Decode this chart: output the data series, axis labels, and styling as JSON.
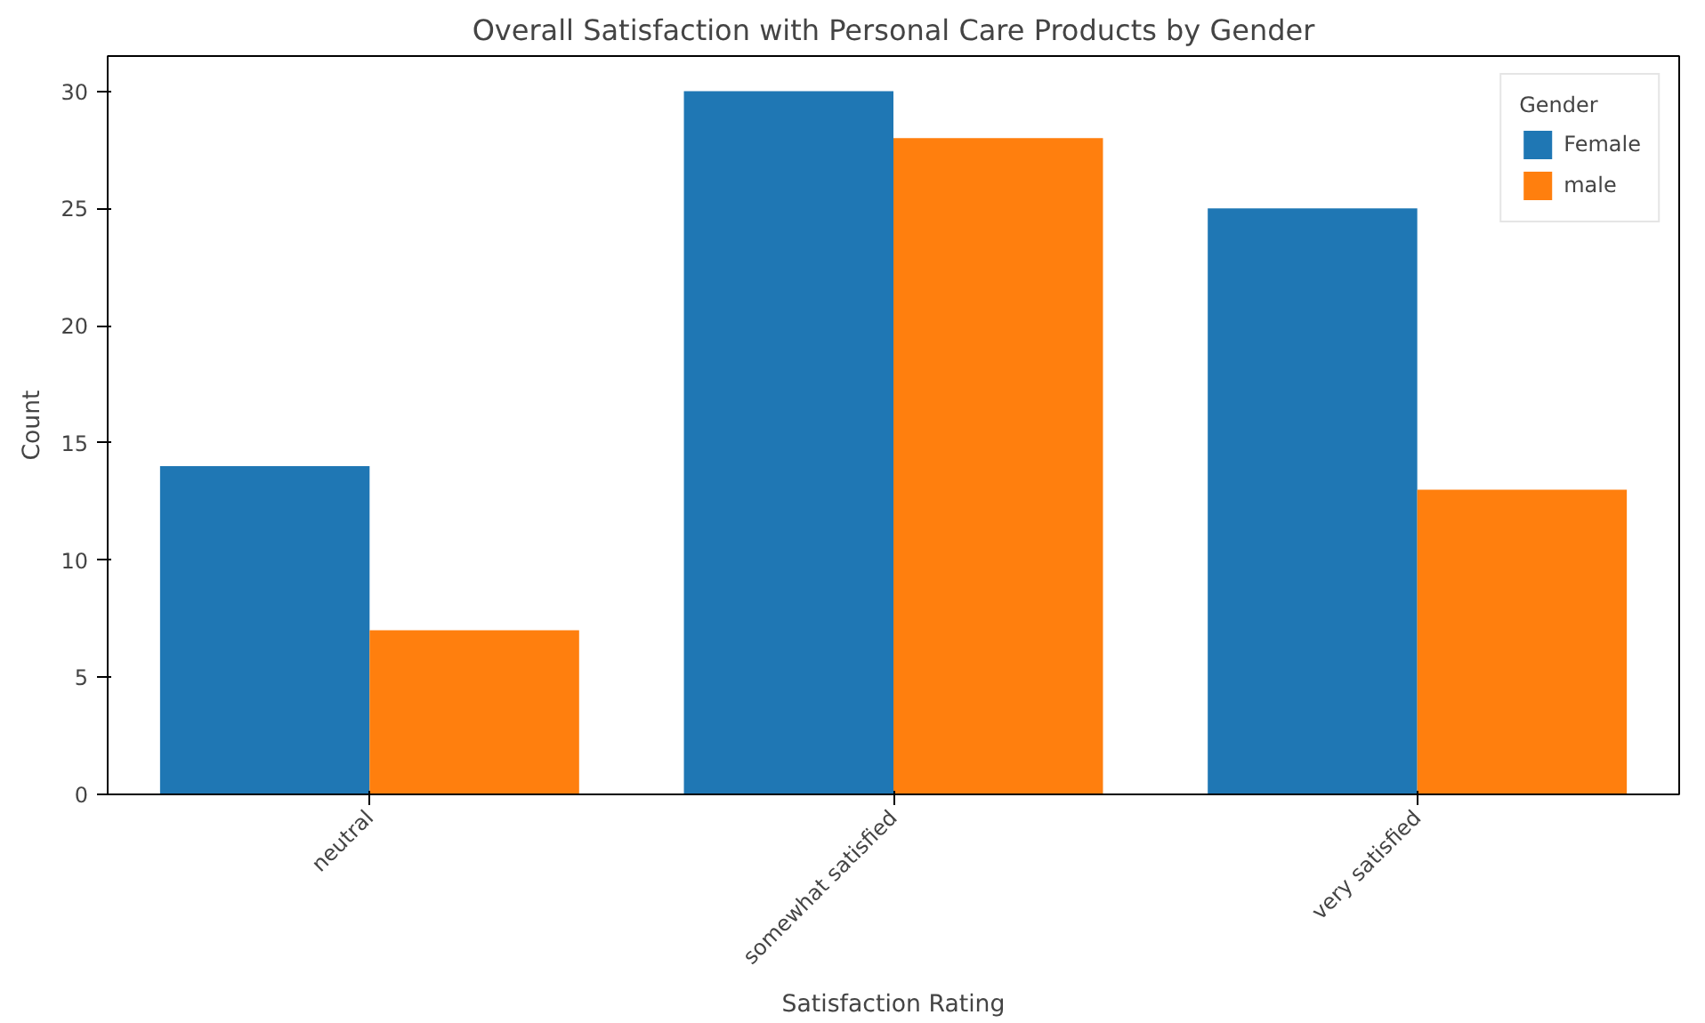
{
  "chart_data": {
    "type": "bar",
    "title": "Overall Satisfaction with Personal Care Products by Gender",
    "xlabel": "Satisfaction Rating",
    "ylabel": "Count",
    "legend_title": "Gender",
    "categories": [
      "neutral",
      "somewhat satisfied",
      "very satisfied"
    ],
    "series": [
      {
        "name": "Female",
        "color": "#1f77b4",
        "values": [
          14,
          30,
          25
        ]
      },
      {
        "name": "male",
        "color": "#ff7f0e",
        "values": [
          7,
          28,
          13
        ]
      }
    ],
    "ylim": [
      0,
      31.5
    ],
    "yticks": [
      0,
      5,
      10,
      15,
      20,
      25,
      30
    ],
    "grid": false,
    "legend": "top right"
  }
}
